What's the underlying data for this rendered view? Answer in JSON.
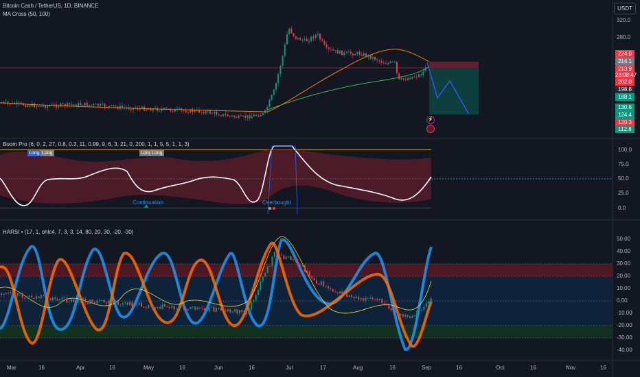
{
  "header": {
    "symbol_line": "Bitcoin Cash / TetherUS, 1D, BINANCE",
    "ma_cross": "MA Cross (50, 100)",
    "boom_pro": "Boom Pro (6, 0, 2, 27, 0.8, 0.3, 11, 0.99, 9, 6, 3, 21, 0, 200, 1, 1, 5, 5, 1, 1, 3)",
    "harsi": "HARSI • (17, 1, ohlc4, 7, 3, 3, 14, 80, 20, 30, -20, -30)",
    "currency": "USDT"
  },
  "price_axis": [
    "320.0",
    "280.0",
    "250.0",
    "224.0",
    "214.1",
    "213.9",
    "23:08:47",
    "202.0",
    "198.6",
    "188.1",
    "130.6",
    "124.4",
    "120.3",
    "112.8"
  ],
  "price_tags": [
    {
      "text": "224.0",
      "color": "#f23645"
    },
    {
      "text": "214.1",
      "color": "#787b86"
    },
    {
      "text": "213.9",
      "color": "#f23645"
    },
    {
      "text": "23:08:47",
      "color": "#f23645"
    },
    {
      "text": "202.0",
      "color": "#f23645"
    },
    {
      "text": "198.6",
      "color": "#2a2e39"
    },
    {
      "text": "188.1",
      "color": "#089981"
    },
    {
      "text": "130.6",
      "color": "#089981"
    },
    {
      "text": "124.4",
      "color": "#089981"
    },
    {
      "text": "120.3",
      "color": "#f23645"
    },
    {
      "text": "112.8",
      "color": "#089981"
    }
  ],
  "boom_axis": [
    "100.0",
    "75.0",
    "50.0",
    "25.0",
    "0.0"
  ],
  "harsi_axis": [
    "50.00",
    "40.00",
    "30.00",
    "20.00",
    "10.00",
    "0.00",
    "-10.00",
    "-20.00",
    "-30.00",
    "-40.00"
  ],
  "time_axis": [
    "Mar",
    "16",
    "Apr",
    "16",
    "May",
    "16",
    "Jun",
    "16",
    "Jul",
    "17",
    "Aug",
    "16",
    "Sep",
    "16",
    "Oct",
    "16",
    "Nov",
    "16"
  ],
  "signals": {
    "long1": "Long",
    "long2": "Long",
    "long3": "Long",
    "long4": "Long",
    "continuation": "Continuation",
    "overbought": "Overbought"
  },
  "chart_data": [
    {
      "type": "candlestick",
      "ylim": [
        100,
        340
      ],
      "ma_fast_period": 50,
      "ma_slow_period": 100,
      "x": [
        "Mar",
        "Apr",
        "May",
        "Jun",
        "Jul",
        "Aug",
        "Sep"
      ],
      "close_approx": [
        170,
        165,
        160,
        155,
        290,
        240,
        214
      ],
      "projection": {
        "entry": 213.9,
        "stop": 224.0,
        "target": 124.4
      }
    },
    {
      "type": "line",
      "name": "Boom Pro",
      "ylim": [
        -10,
        115
      ],
      "levels": [
        100,
        50,
        0
      ]
    },
    {
      "type": "line",
      "name": "HARSI",
      "ylim": [
        -45,
        55
      ],
      "levels": [
        30,
        20,
        0,
        -20,
        -30
      ]
    }
  ],
  "colors": {
    "bg": "#131722",
    "up": "#089981",
    "down": "#f23645",
    "ma_fast": "#f57c00",
    "ma_slow": "#4caf50",
    "boom_line": "#ffffff",
    "harsi_blue": "#2196f3",
    "harsi_orange": "#ff6d00"
  }
}
